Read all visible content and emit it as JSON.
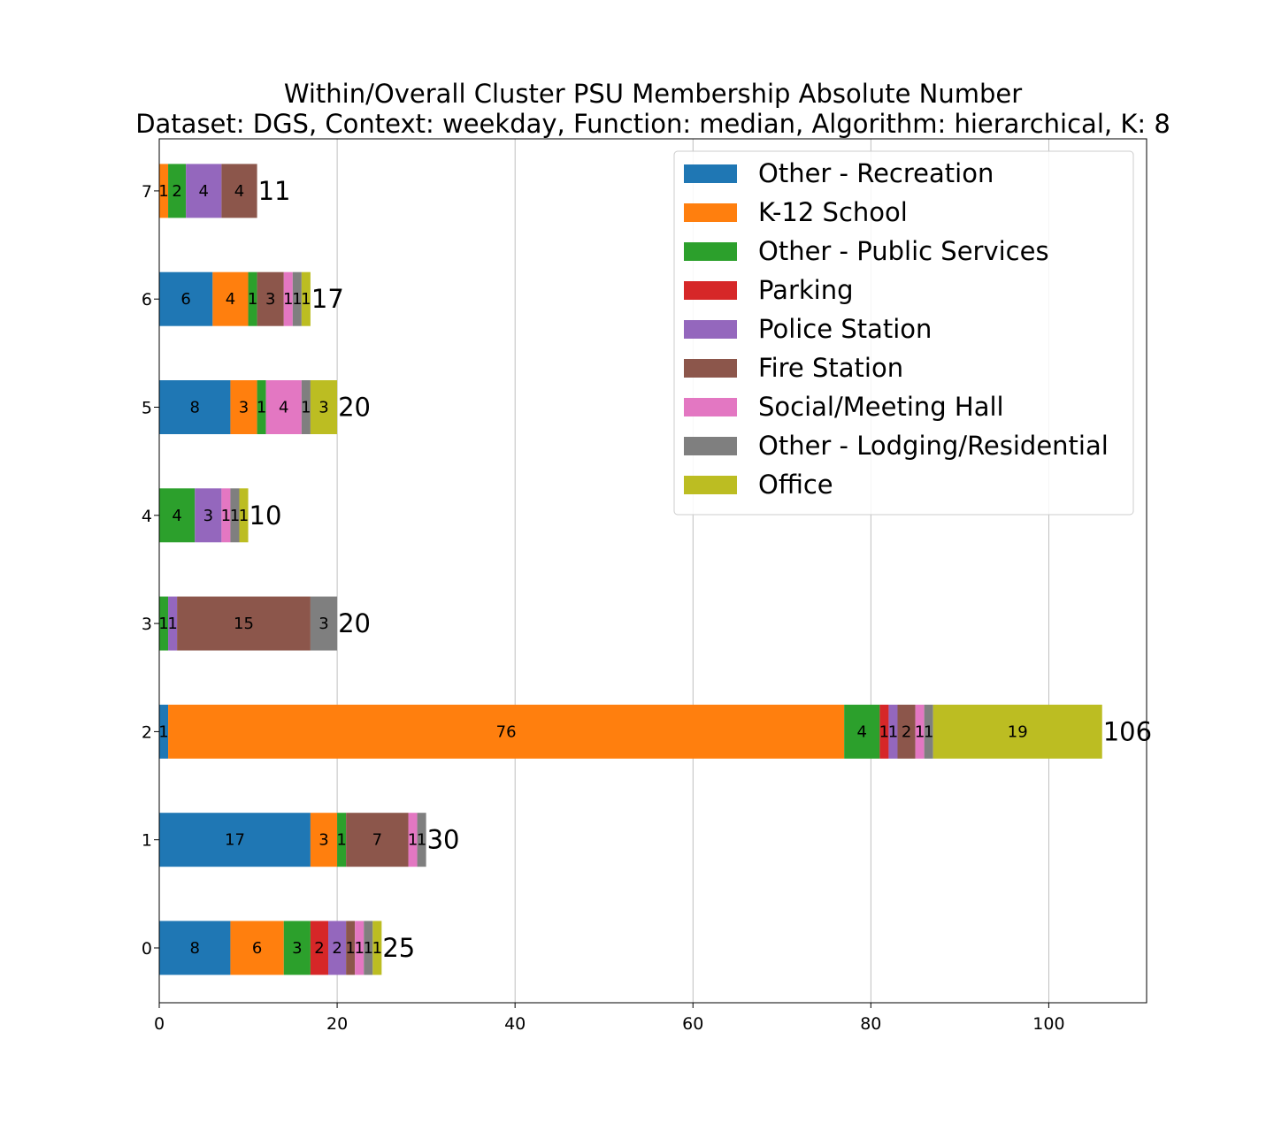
{
  "chart_data": {
    "type": "bar",
    "orientation": "horizontal",
    "stacked": true,
    "title": "Within/Overall Cluster PSU Membership Absolute Number",
    "subtitle": "Dataset: DGS, Context: weekday, Function: median, Algorithm: hierarchical, K: 8",
    "xlabel": "",
    "ylabel": "",
    "xlim": [
      0,
      111
    ],
    "xticks": [
      0,
      20,
      40,
      60,
      80,
      100
    ],
    "grid": "x",
    "legend_position": "top-right",
    "categories": [
      "0",
      "1",
      "2",
      "3",
      "4",
      "5",
      "6",
      "7"
    ],
    "series": [
      {
        "name": "Other - Recreation",
        "color": "#1f77b4",
        "values": [
          8,
          17,
          1,
          0,
          0,
          8,
          6,
          0
        ]
      },
      {
        "name": "K-12 School",
        "color": "#ff7f0e",
        "values": [
          6,
          3,
          76,
          0,
          0,
          3,
          4,
          1
        ]
      },
      {
        "name": "Other - Public Services",
        "color": "#2ca02c",
        "values": [
          3,
          1,
          4,
          1,
          4,
          1,
          1,
          2
        ]
      },
      {
        "name": "Parking",
        "color": "#d62728",
        "values": [
          2,
          0,
          1,
          0,
          0,
          0,
          0,
          0
        ]
      },
      {
        "name": "Police Station",
        "color": "#9467bd",
        "values": [
          2,
          0,
          1,
          1,
          3,
          0,
          0,
          4
        ]
      },
      {
        "name": "Fire Station",
        "color": "#8c564b",
        "values": [
          1,
          7,
          2,
          15,
          0,
          0,
          3,
          4
        ]
      },
      {
        "name": "Social/Meeting Hall",
        "color": "#e377c2",
        "values": [
          1,
          1,
          1,
          0,
          1,
          4,
          1,
          0
        ]
      },
      {
        "name": "Other - Lodging/Residential",
        "color": "#7f7f7f",
        "values": [
          1,
          1,
          1,
          3,
          1,
          1,
          1,
          0
        ]
      },
      {
        "name": "Office",
        "color": "#bcbd22",
        "values": [
          1,
          0,
          19,
          0,
          1,
          3,
          1,
          0
        ]
      }
    ],
    "totals": [
      25,
      30,
      106,
      20,
      10,
      20,
      17,
      11
    ]
  }
}
